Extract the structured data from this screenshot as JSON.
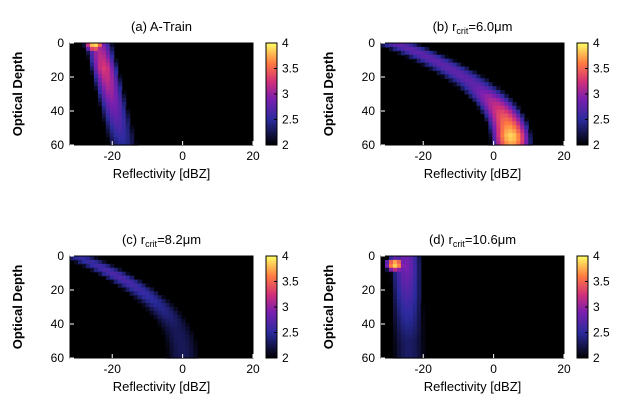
{
  "chart_data": [
    {
      "type": "heatmap",
      "title": "(a) A-Train",
      "xlabel": "Reflectivity [dBZ]",
      "ylabel": "Optical Depth",
      "xlim": [
        -32,
        20
      ],
      "ylim": [
        0,
        60
      ],
      "y_inverted": true,
      "xticks": [
        "-20",
        "0",
        "20"
      ],
      "yticks": [
        "0",
        "20",
        "40",
        "60"
      ],
      "colorbar": {
        "range": [
          2,
          4
        ],
        "ticks": [
          "4",
          "3.5",
          "3",
          "2.5",
          "2"
        ]
      },
      "features": [
        {
          "kind": "band",
          "center_x_at_top": -24,
          "center_x_at_bottom": -17,
          "width_dbz": 8,
          "peak_depth": 15,
          "peak_value": 3.3
        },
        {
          "kind": "hotspot",
          "x": -25,
          "depth": 1,
          "value": 3.9
        }
      ]
    },
    {
      "type": "heatmap",
      "title": "(b) r",
      "title_sub": "crit",
      "title_suffix": "=6.0μm",
      "xlabel": "Reflectivity [dBZ]",
      "ylabel": "Optical Depth",
      "xlim": [
        -32,
        20
      ],
      "ylim": [
        0,
        60
      ],
      "y_inverted": true,
      "xticks": [
        "-20",
        "0",
        "20"
      ],
      "yticks": [
        "0",
        "20",
        "40",
        "60"
      ],
      "colorbar": {
        "range": [
          2,
          4
        ],
        "ticks": [
          "4",
          "3.5",
          "3",
          "2.5",
          "2"
        ]
      },
      "features": [
        {
          "kind": "arc",
          "top_x": -28,
          "bottom_x": 5,
          "width_dbz": 12,
          "peak_depth": 55,
          "peak_value": 3.9
        }
      ]
    },
    {
      "type": "heatmap",
      "title": "(c) r",
      "title_sub": "crit",
      "title_suffix": "=8.2μm",
      "xlabel": "Reflectivity [dBZ]",
      "ylabel": "Optical Depth",
      "xlim": [
        -32,
        20
      ],
      "ylim": [
        0,
        60
      ],
      "y_inverted": true,
      "xticks": [
        "-20",
        "0",
        "20"
      ],
      "yticks": [
        "0",
        "20",
        "40",
        "60"
      ],
      "colorbar": {
        "range": [
          2,
          4
        ],
        "ticks": [
          "4",
          "3.5",
          "3",
          "2.5",
          "2"
        ]
      },
      "features": [
        {
          "kind": "arc",
          "top_x": -30,
          "bottom_x": 0,
          "width_dbz": 9,
          "peak_depth": 12,
          "peak_value": 2.7
        }
      ]
    },
    {
      "type": "heatmap",
      "title": "(d) r",
      "title_sub": "crit",
      "title_suffix": "=10.6μm",
      "xlabel": "Reflectivity [dBZ]",
      "ylabel": "Optical Depth",
      "xlim": [
        -32,
        20
      ],
      "ylim": [
        0,
        60
      ],
      "y_inverted": true,
      "xticks": [
        "-20",
        "0",
        "20"
      ],
      "yticks": [
        "0",
        "20",
        "40",
        "60"
      ],
      "colorbar": {
        "range": [
          2,
          4
        ],
        "ticks": [
          "4",
          "3.5",
          "3",
          "2.5",
          "2"
        ]
      },
      "features": [
        {
          "kind": "band",
          "center_x_at_top": -25,
          "center_x_at_bottom": -24,
          "width_dbz": 9,
          "peak_depth": 5,
          "peak_value": 2.9
        },
        {
          "kind": "hotspot",
          "x": -28,
          "depth": 5,
          "value": 3.9
        }
      ]
    }
  ]
}
